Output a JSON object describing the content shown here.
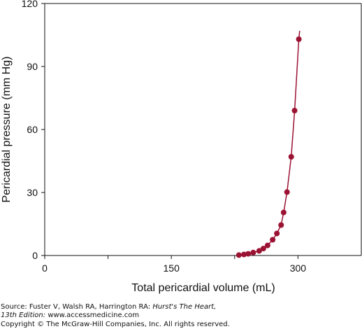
{
  "chart_data": {
    "type": "line",
    "title": "",
    "xlabel": "Total pericardial volume (mL)",
    "ylabel": "Pericardial pressure (mm Hg)",
    "xlim": [
      0,
      375
    ],
    "ylim": [
      0,
      120
    ],
    "xticks": [
      0,
      150,
      300
    ],
    "xticks_minor": [
      75,
      225
    ],
    "yticks": [
      0,
      30,
      60,
      90,
      120
    ],
    "x_tick_labels": [
      "0",
      "150",
      "300"
    ],
    "y_tick_labels": [
      "0",
      "30",
      "60",
      "90",
      "120"
    ],
    "grid": false,
    "legend": "none",
    "marker_color": "#9b1233",
    "series": [
      {
        "x": [
          230,
          236,
          241,
          247,
          254,
          259,
          264,
          270,
          275,
          280,
          283,
          287,
          292,
          296,
          301
        ],
        "y": [
          0.2,
          0.5,
          0.8,
          1.4,
          2.2,
          3.3,
          4.8,
          7.5,
          10.5,
          14.5,
          20.5,
          30.2,
          47,
          69,
          103
        ]
      }
    ],
    "curve_tail": {
      "x": [
        301,
        302
      ],
      "y": [
        103,
        107
      ]
    }
  },
  "footer": {
    "source_prefix": "Source: Fuster V, Walsh RA, Harrington RA: ",
    "source_title": "Hurst's The Heart,",
    "edition": "13th Edition: ",
    "url": "www.accessmedicine.com",
    "copyright": "Copyright © The McGraw-Hill Companies, Inc. All rights reserved."
  }
}
